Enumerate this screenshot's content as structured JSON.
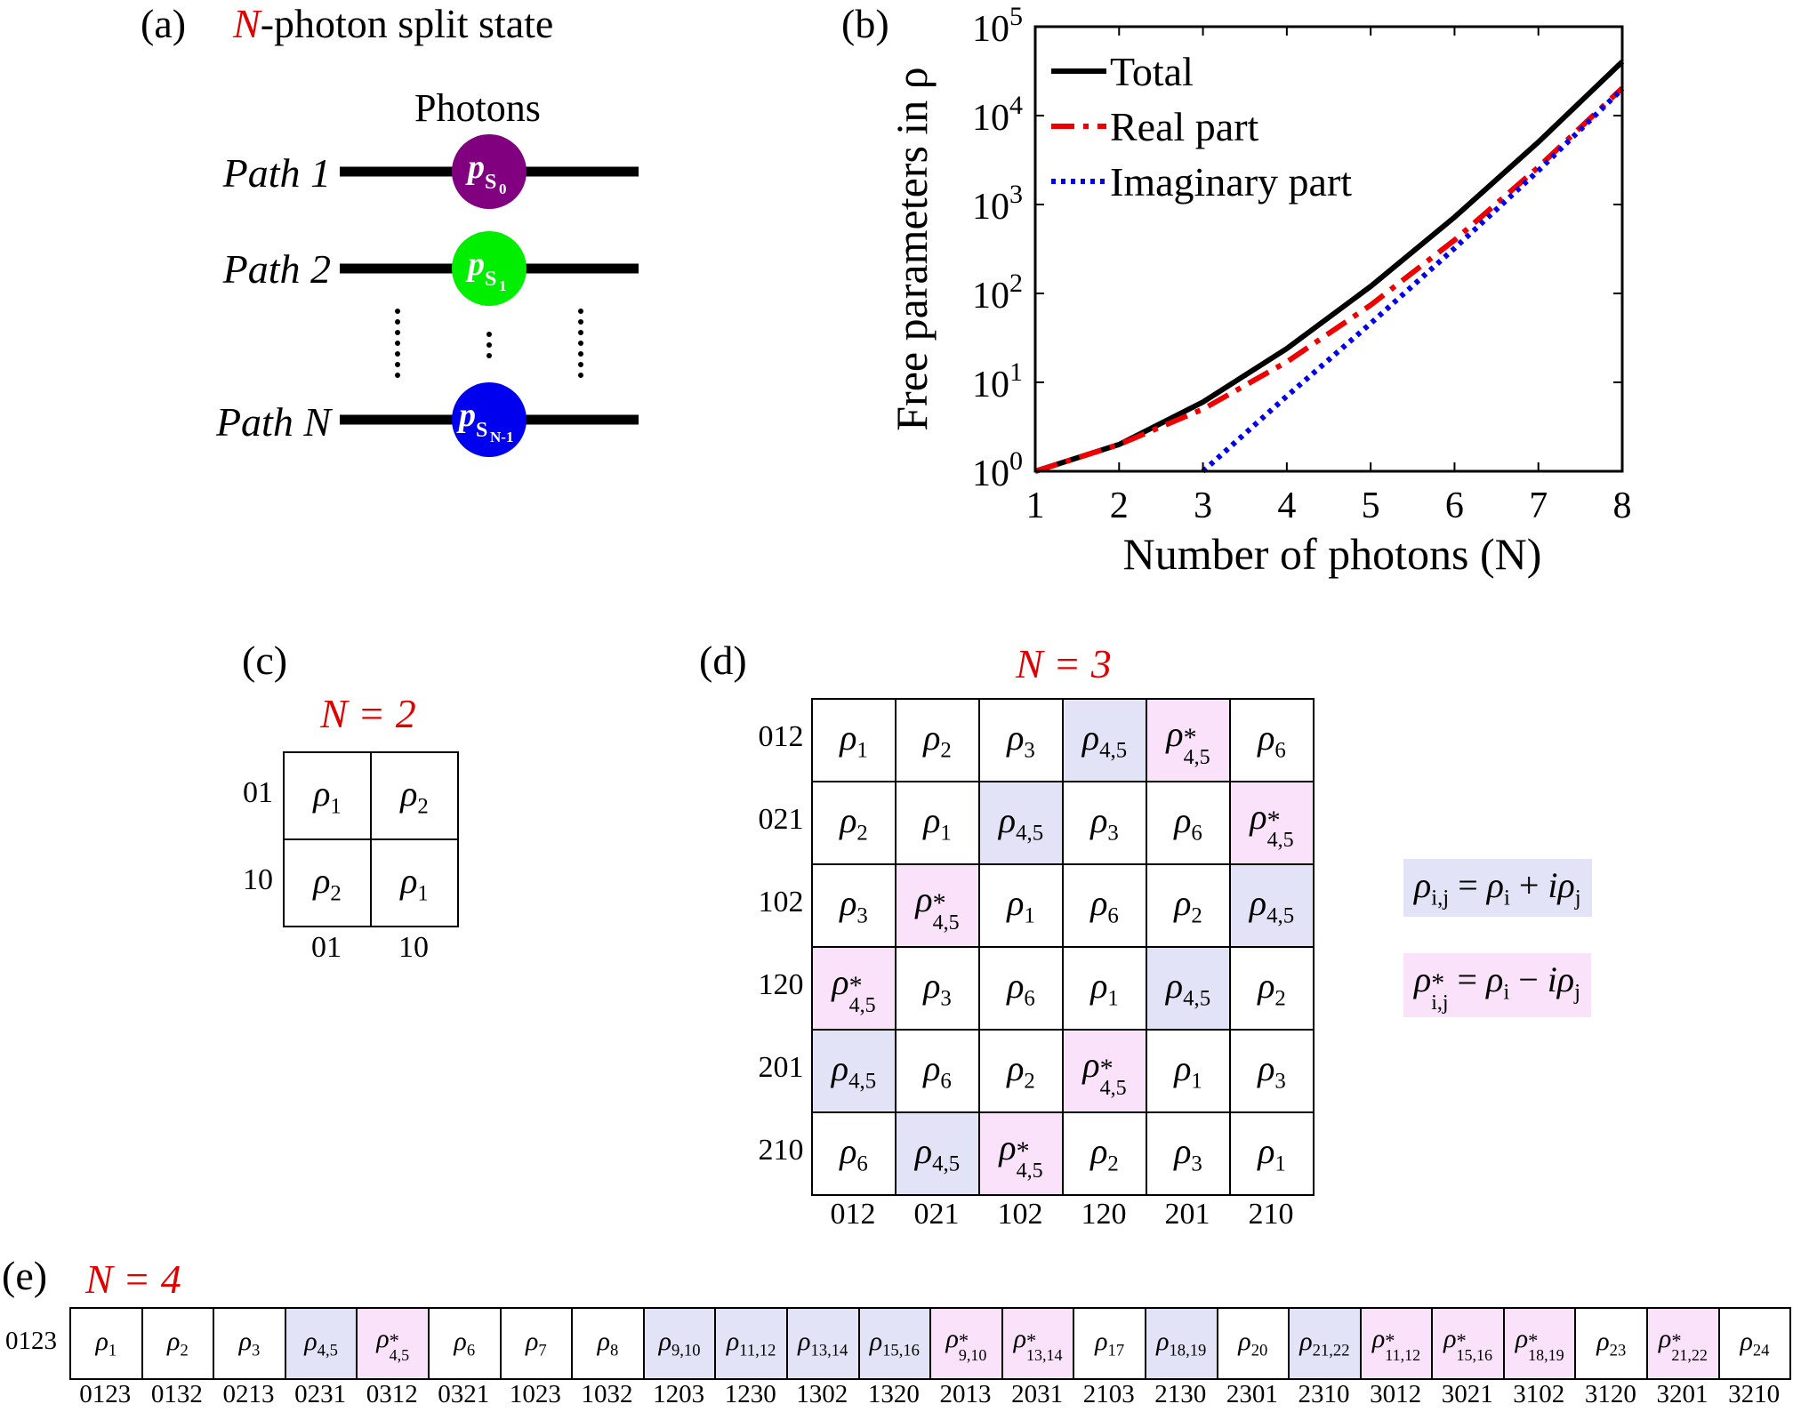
{
  "panel_a": {
    "label": "(a)",
    "title_var": "N",
    "title_rest": "-photon split state",
    "photons_label": "Photons",
    "paths": [
      {
        "label": "Path 1",
        "subscript": "0",
        "color": "#800080"
      },
      {
        "label": "Path 2",
        "subscript": "1",
        "color": "#00ee00"
      },
      {
        "label": "Path N",
        "subscript": "N-1",
        "color": "#0000ee"
      }
    ],
    "photon_symbol": "p",
    "photon_sub_letter": "S"
  },
  "panel_b": {
    "label": "(b)"
  },
  "chart_data": {
    "type": "line",
    "title": "",
    "xlabel": "Number of photons (N)",
    "ylabel": "Free parameters in ρ",
    "x": [
      1,
      2,
      3,
      4,
      5,
      6,
      7,
      8
    ],
    "xlim": [
      1,
      8
    ],
    "ylim": [
      1,
      100000
    ],
    "yscale": "log",
    "xticks": [
      "1",
      "2",
      "3",
      "4",
      "5",
      "6",
      "7",
      "8"
    ],
    "yticks": [
      {
        "base": "10",
        "exp": "0",
        "value": 1
      },
      {
        "base": "10",
        "exp": "1",
        "value": 10
      },
      {
        "base": "10",
        "exp": "2",
        "value": 100
      },
      {
        "base": "10",
        "exp": "3",
        "value": 1000
      },
      {
        "base": "10",
        "exp": "4",
        "value": 10000
      },
      {
        "base": "10",
        "exp": "5",
        "value": 100000
      }
    ],
    "legend_position": "top-left",
    "series": [
      {
        "name": "Total",
        "values": [
          1,
          2,
          6,
          24,
          120,
          720,
          5040,
          40320
        ],
        "color": "#000000",
        "dash": "solid"
      },
      {
        "name": "Real part",
        "values": [
          1,
          2,
          5,
          17,
          74,
          398,
          2636,
          20368
        ],
        "color": "#ee0000",
        "dash": "dashdot"
      },
      {
        "name": "Imaginary part",
        "values": [
          null,
          null,
          1,
          7,
          46,
          322,
          2404,
          19952
        ],
        "color": "#0000ee",
        "dash": "dotted"
      }
    ]
  },
  "panel_c": {
    "label": "(c)",
    "title": "N = 2",
    "row_labels": [
      "01",
      "10"
    ],
    "col_labels": [
      "01",
      "10"
    ],
    "cells": [
      [
        {
          "t": "r",
          "i": "1"
        },
        {
          "t": "r",
          "i": "2"
        }
      ],
      [
        {
          "t": "r",
          "i": "2"
        },
        {
          "t": "r",
          "i": "1"
        }
      ]
    ]
  },
  "panel_d": {
    "label": "(d)",
    "title": "N = 3",
    "row_labels": [
      "012",
      "021",
      "102",
      "120",
      "201",
      "210"
    ],
    "col_labels": [
      "012",
      "021",
      "102",
      "120",
      "201",
      "210"
    ],
    "cells": [
      [
        {
          "t": "r",
          "i": "1"
        },
        {
          "t": "r",
          "i": "2"
        },
        {
          "t": "r",
          "i": "3"
        },
        {
          "t": "c",
          "i": "4,5"
        },
        {
          "t": "s",
          "i": "4,5"
        },
        {
          "t": "r",
          "i": "6"
        }
      ],
      [
        {
          "t": "r",
          "i": "2"
        },
        {
          "t": "r",
          "i": "1"
        },
        {
          "t": "c",
          "i": "4,5"
        },
        {
          "t": "r",
          "i": "3"
        },
        {
          "t": "r",
          "i": "6"
        },
        {
          "t": "s",
          "i": "4,5"
        }
      ],
      [
        {
          "t": "r",
          "i": "3"
        },
        {
          "t": "s",
          "i": "4,5"
        },
        {
          "t": "r",
          "i": "1"
        },
        {
          "t": "r",
          "i": "6"
        },
        {
          "t": "r",
          "i": "2"
        },
        {
          "t": "c",
          "i": "4,5"
        }
      ],
      [
        {
          "t": "s",
          "i": "4,5"
        },
        {
          "t": "r",
          "i": "3"
        },
        {
          "t": "r",
          "i": "6"
        },
        {
          "t": "r",
          "i": "1"
        },
        {
          "t": "c",
          "i": "4,5"
        },
        {
          "t": "r",
          "i": "2"
        }
      ],
      [
        {
          "t": "c",
          "i": "4,5"
        },
        {
          "t": "r",
          "i": "6"
        },
        {
          "t": "r",
          "i": "2"
        },
        {
          "t": "s",
          "i": "4,5"
        },
        {
          "t": "r",
          "i": "1"
        },
        {
          "t": "r",
          "i": "3"
        }
      ],
      [
        {
          "t": "r",
          "i": "6"
        },
        {
          "t": "c",
          "i": "4,5"
        },
        {
          "t": "s",
          "i": "4,5"
        },
        {
          "t": "r",
          "i": "2"
        },
        {
          "t": "r",
          "i": "3"
        },
        {
          "t": "r",
          "i": "1"
        }
      ]
    ],
    "legend": [
      {
        "kind": "c",
        "lhs_sub": "i,j",
        "rhs": "= ρ",
        "rhs_sub1": "i",
        "op": "+",
        "rhs2": "iρ",
        "rhs_sub2": "j"
      },
      {
        "kind": "s",
        "lhs_sub": "i,j",
        "rhs": "= ρ",
        "rhs_sub1": "i",
        "op": "−",
        "rhs2": "iρ",
        "rhs_sub2": "j"
      }
    ]
  },
  "panel_e": {
    "label": "(e)",
    "title": "N = 4",
    "row_labels": [
      "0123"
    ],
    "col_labels": [
      "0123",
      "0132",
      "0213",
      "0231",
      "0312",
      "0321",
      "1023",
      "1032",
      "1203",
      "1230",
      "1302",
      "1320",
      "2013",
      "2031",
      "2103",
      "2130",
      "2301",
      "2310",
      "3012",
      "3021",
      "3102",
      "3120",
      "3201",
      "3210"
    ],
    "cells": [
      [
        {
          "t": "r",
          "i": "1"
        },
        {
          "t": "r",
          "i": "2"
        },
        {
          "t": "r",
          "i": "3"
        },
        {
          "t": "c",
          "i": "4,5"
        },
        {
          "t": "s",
          "i": "4,5"
        },
        {
          "t": "r",
          "i": "6"
        },
        {
          "t": "r",
          "i": "7"
        },
        {
          "t": "r",
          "i": "8"
        },
        {
          "t": "c",
          "i": "9,10"
        },
        {
          "t": "c",
          "i": "11,12"
        },
        {
          "t": "c",
          "i": "13,14"
        },
        {
          "t": "c",
          "i": "15,16"
        },
        {
          "t": "s",
          "i": "9,10"
        },
        {
          "t": "s",
          "i": "13,14"
        },
        {
          "t": "r",
          "i": "17"
        },
        {
          "t": "c",
          "i": "18,19"
        },
        {
          "t": "r",
          "i": "20"
        },
        {
          "t": "c",
          "i": "21,22"
        },
        {
          "t": "s",
          "i": "11,12"
        },
        {
          "t": "s",
          "i": "15,16"
        },
        {
          "t": "s",
          "i": "18,19"
        },
        {
          "t": "r",
          "i": "23"
        },
        {
          "t": "s",
          "i": "21,22"
        },
        {
          "t": "r",
          "i": "24"
        }
      ]
    ]
  },
  "symbols": {
    "rho": "ρ",
    "star": "*"
  }
}
